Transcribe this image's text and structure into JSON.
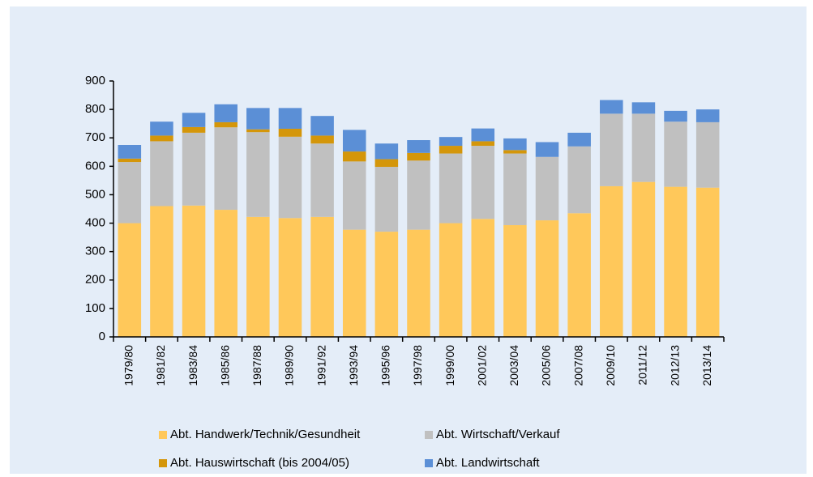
{
  "chart_data": {
    "type": "bar",
    "stacked": true,
    "categories": [
      "1979/80",
      "1981/82",
      "1983/84",
      "1985/86",
      "1987/88",
      "1989/90",
      "1991/92",
      "1993/94",
      "1995/96",
      "1997/98",
      "1999/00",
      "2001/02",
      "2003/04",
      "2005/06",
      "2007/08",
      "2009/10",
      "2011/12",
      "2012/13",
      "2013/14"
    ],
    "series": [
      {
        "name": "Abt. Handwerk/Technik/Gesundheit",
        "color": "#ffc85a",
        "values": [
          400,
          460,
          462,
          447,
          422,
          418,
          422,
          377,
          370,
          377,
          400,
          415,
          393,
          410,
          435,
          530,
          545,
          528,
          525
        ]
      },
      {
        "name": "Abt. Wirtschaft/Verkauf",
        "color": "#c0c0c0",
        "values": [
          215,
          228,
          256,
          290,
          298,
          286,
          258,
          240,
          228,
          243,
          245,
          257,
          252,
          223,
          235,
          255,
          240,
          229,
          230
        ]
      },
      {
        "name": "Abt. Hauswirtschaft (bis 2004/05)",
        "color": "#d4960a",
        "values": [
          12,
          20,
          20,
          18,
          10,
          28,
          28,
          35,
          27,
          27,
          27,
          16,
          12,
          0,
          0,
          0,
          0,
          0,
          0
        ]
      },
      {
        "name": "Abt. Landwirtschaft",
        "color": "#5b8fd6",
        "values": [
          48,
          49,
          50,
          63,
          75,
          73,
          69,
          76,
          55,
          45,
          31,
          45,
          41,
          52,
          48,
          48,
          40,
          38,
          45
        ]
      }
    ],
    "ylim": [
      0,
      900
    ],
    "yticks": [
      0,
      100,
      200,
      300,
      400,
      500,
      600,
      700,
      800,
      900
    ],
    "grid": false,
    "legend": "bottom"
  }
}
